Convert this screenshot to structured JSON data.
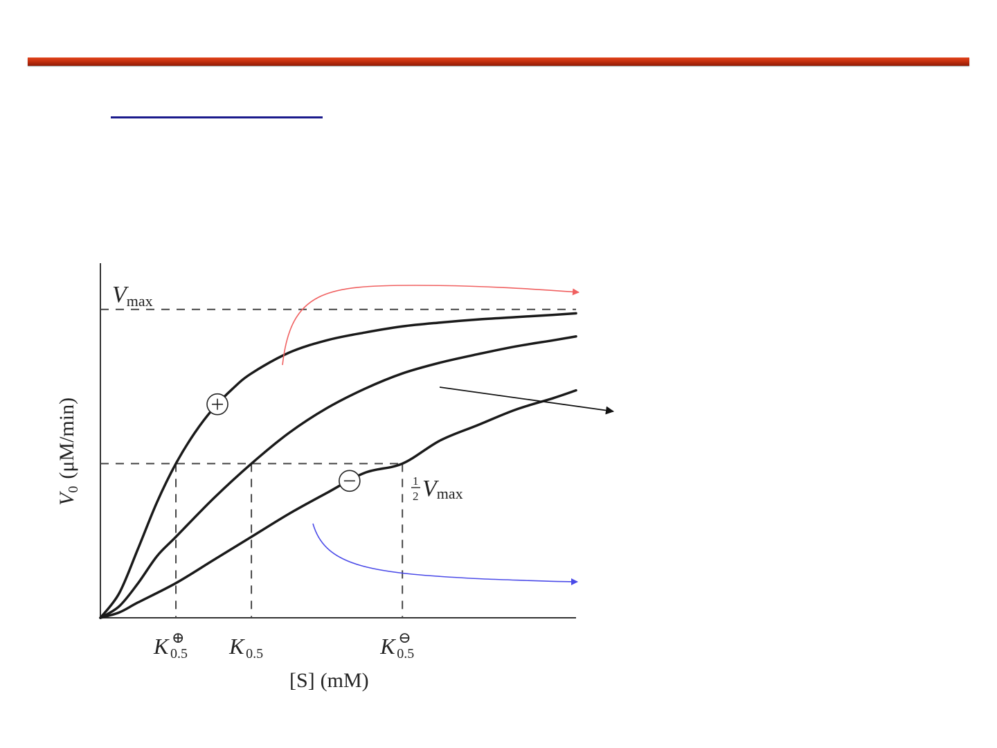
{
  "slide": {
    "accent_bar_color": "#c6300f",
    "title_underline_color": "#1a1a8c"
  },
  "chart_data": {
    "type": "line",
    "xlabel": {
      "main": "[S]",
      "unit": "(mM)"
    },
    "ylabel": {
      "symbol": "V",
      "sub": "0",
      "unit": "(μM/min)"
    },
    "x_ticks_shown": false,
    "y_ticks_shown": false,
    "xlim": [
      0,
      6.3
    ],
    "ylim": [
      0,
      4.6
    ],
    "vmax": 4.0,
    "vmax_label": {
      "symbol": "V",
      "sub": "max"
    },
    "half_vmax": 2.0,
    "half_vmax_label": {
      "frac_num": "1",
      "frac_den": "2",
      "symbol": "V",
      "sub": "max"
    },
    "k_labels": [
      {
        "name": "k-plus",
        "base": "K",
        "sub": "0.5",
        "sup": "⊕",
        "x": 1.0
      },
      {
        "name": "k-normal",
        "base": "K",
        "sub": "0.5",
        "sup": "",
        "x": 2.0
      },
      {
        "name": "k-minus",
        "base": "K",
        "sub": "0.5",
        "sup": "⊖",
        "x": 4.0
      }
    ],
    "series": [
      {
        "name": "",
        "marker": "+",
        "marker_at": 1.55,
        "points": [
          [
            0,
            0
          ],
          [
            0.25,
            0.32
          ],
          [
            0.5,
            0.9
          ],
          [
            0.75,
            1.5
          ],
          [
            1.0,
            2.0
          ],
          [
            1.25,
            2.4
          ],
          [
            1.5,
            2.72
          ],
          [
            1.75,
            2.97
          ],
          [
            2.0,
            3.17
          ],
          [
            2.5,
            3.44
          ],
          [
            3.0,
            3.6
          ],
          [
            3.5,
            3.7
          ],
          [
            4.0,
            3.78
          ],
          [
            4.5,
            3.83
          ],
          [
            5.0,
            3.87
          ],
          [
            5.5,
            3.9
          ],
          [
            6.0,
            3.93
          ],
          [
            6.3,
            3.95
          ]
        ]
      },
      {
        "name": "",
        "marker": "",
        "points": [
          [
            0,
            0
          ],
          [
            0.25,
            0.15
          ],
          [
            0.5,
            0.45
          ],
          [
            0.75,
            0.8
          ],
          [
            1.0,
            1.05
          ],
          [
            1.5,
            1.55
          ],
          [
            2.0,
            2.0
          ],
          [
            2.5,
            2.4
          ],
          [
            3.0,
            2.72
          ],
          [
            3.5,
            2.97
          ],
          [
            4.0,
            3.17
          ],
          [
            4.5,
            3.31
          ],
          [
            5.0,
            3.42
          ],
          [
            5.5,
            3.52
          ],
          [
            6.0,
            3.6
          ],
          [
            6.3,
            3.65
          ]
        ]
      },
      {
        "name": "",
        "marker": "−",
        "marker_at": 3.3,
        "points": [
          [
            0,
            0
          ],
          [
            0.25,
            0.07
          ],
          [
            0.5,
            0.2
          ],
          [
            1.0,
            0.45
          ],
          [
            1.5,
            0.75
          ],
          [
            2.0,
            1.05
          ],
          [
            2.5,
            1.35
          ],
          [
            3.0,
            1.62
          ],
          [
            3.5,
            1.88
          ],
          [
            4.0,
            2.0
          ],
          [
            4.5,
            2.3
          ],
          [
            5.0,
            2.5
          ],
          [
            5.5,
            2.7
          ],
          [
            6.0,
            2.85
          ],
          [
            6.3,
            2.95
          ]
        ]
      }
    ],
    "callout_arrows": [
      {
        "name": "red-arrow",
        "color": "#f06060"
      },
      {
        "name": "black-arrow",
        "color": "#111111"
      },
      {
        "name": "blue-arrow",
        "color": "#4a4ae8"
      }
    ],
    "grid": false
  }
}
